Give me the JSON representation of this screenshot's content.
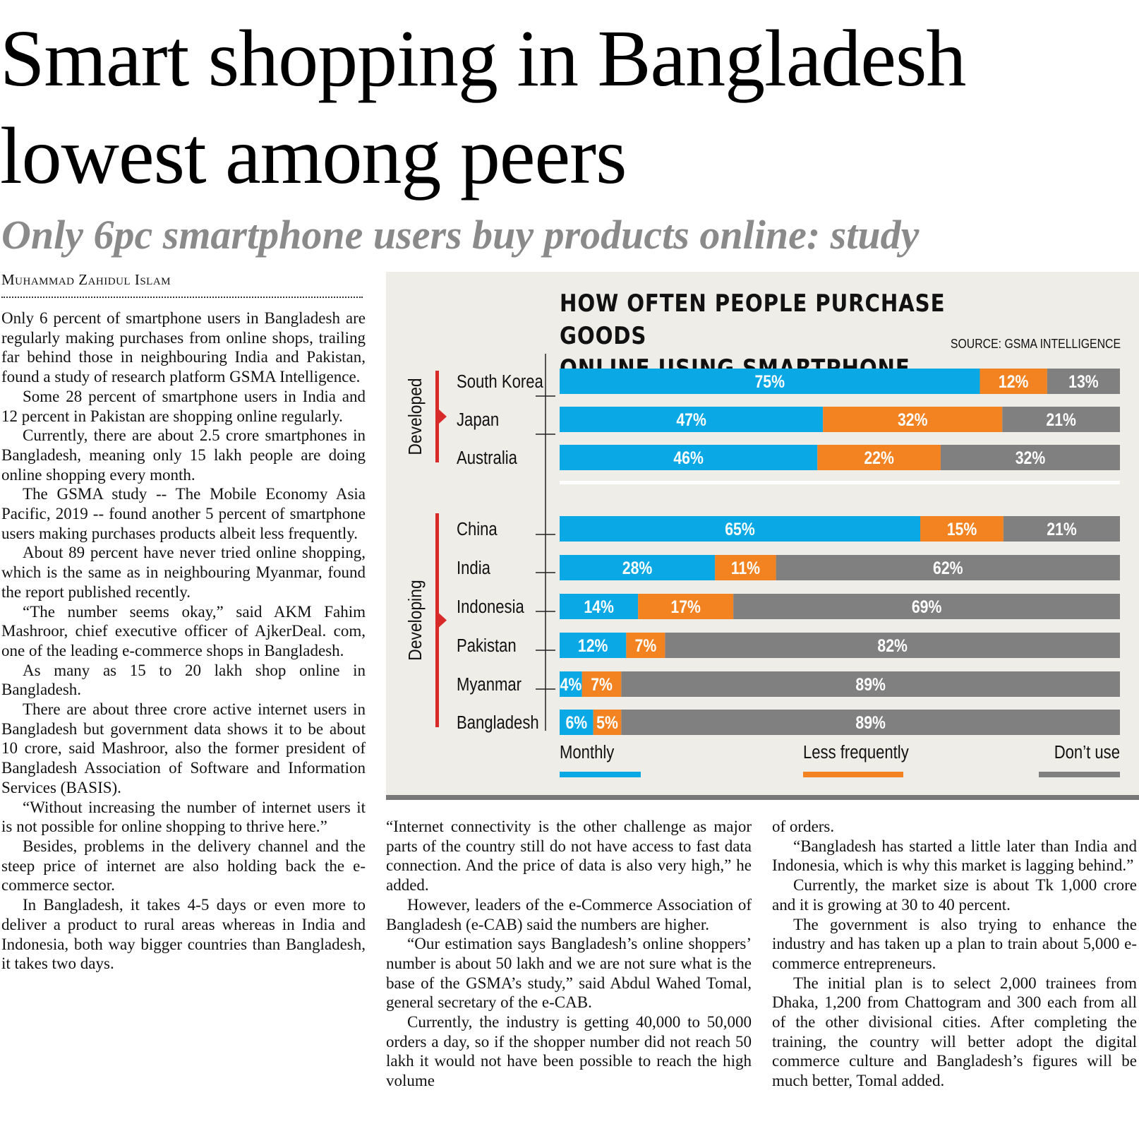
{
  "headline": "Smart shopping in Bangladesh lowest among peers",
  "subheadline": "Only 6pc smartphone users buy products online: study",
  "byline": "Muhammad Zahidul Islam",
  "columns": {
    "col1": [
      "Only 6 percent of smartphone users in Bangladesh are regularly making purchases from online shops, trailing far behind those in neighbouring India and Pakistan, found a study of research platform GSMA Intelligence.",
      "Some 28 percent of smartphone users in India and 12 percent in Pakistan are shopping online regularly.",
      "Currently, there are about 2.5 crore smartphones in Bangladesh, meaning only 15 lakh people are doing online shopping every month.",
      "The GSMA study -- The Mobile Economy Asia Pacific, 2019 -- found another 5 percent of smartphone users making purchases products albeit less frequently.",
      "About 89 percent have never tried online shopping, which is the same as in neighbouring Myanmar, found the report published recently.",
      "“The number seems okay,” said AKM Fahim Mashroor, chief executive officer of AjkerDeal. com, one of the leading e-commerce shops in Bangladesh.",
      "As many as 15 to 20 lakh shop online in Bangladesh.",
      "There are about three crore active internet users in Bangladesh but government data shows it to be about 10 crore, said Mashroor, also the former president of Bangladesh Association of Software and Information Services (BASIS).",
      "“Without increasing the number of internet users it is not possible for online shopping to thrive here.”",
      "Besides, problems in the delivery channel and the steep price of internet are also holding back the e-commerce sector.",
      "In Bangladesh, it takes 4-5 days or even more to deliver a product to rural areas whereas in India and Indonesia, both way bigger countries than Bangladesh, it takes two days."
    ],
    "col2": [
      "“Internet connectivity is the other challenge as major parts of the country still do not have access to fast data connection. And the price of data is also very high,” he added.",
      "However, leaders of the e-Commerce Association of Bangladesh (e-CAB) said the numbers are higher.",
      "“Our estimation says Bangladesh’s online shoppers’ number is about 50 lakh and we are not sure what is the base of the GSMA’s study,” said Abdul Wahed Tomal, general secretary of the e-CAB.",
      "Currently, the industry is getting 40,000 to 50,000 orders a day, so if the shopper number did not reach 50 lakh it would not have been possible to reach the high volume"
    ],
    "col3": [
      "of orders.",
      "“Bangladesh has started a little later than India and Indonesia, which is why this market is lagging behind.”",
      "Currently, the market size is about Tk 1,000 crore and it is growing at 30 to 40 percent.",
      "The government is also trying to enhance the industry and has taken up a plan to train about 5,000 e-commerce entrepreneurs.",
      "The initial plan is to select 2,000 trainees from Dhaka, 1,200 from Chattogram and 300 each from all of the other divisional cities. After completing the training, the country will better adopt the digital commerce culture and Bangladesh’s figures will be much better, Tomal added."
    ]
  },
  "chart_data": {
    "type": "bar",
    "stacked": true,
    "orientation": "horizontal",
    "title_line1": "HOW OFTEN PEOPLE PURCHASE GOODS",
    "title_line2": "ONLINE USING SMARTPHONE",
    "source": "SOURCE: GSMA INTELLIGENCE",
    "groups": [
      {
        "name": "Developed",
        "categories": [
          "South Korea",
          "Japan",
          "Australia"
        ]
      },
      {
        "name": "Developing",
        "categories": [
          "China",
          "India",
          "Indonesia",
          "Pakistan",
          "Myanmar",
          "Bangladesh"
        ]
      }
    ],
    "categories": [
      "South Korea",
      "Japan",
      "Australia",
      "China",
      "India",
      "Indonesia",
      "Pakistan",
      "Myanmar",
      "Bangladesh"
    ],
    "series": [
      {
        "name": "Monthly",
        "color": "#0aa9e6",
        "values": [
          75,
          47,
          46,
          65,
          28,
          14,
          12,
          4,
          6
        ]
      },
      {
        "name": "Less frequently",
        "color": "#f38221",
        "values": [
          12,
          32,
          22,
          15,
          11,
          17,
          7,
          7,
          5
        ]
      },
      {
        "name": "Don’t use",
        "color": "#808080",
        "values": [
          13,
          21,
          32,
          21,
          62,
          69,
          82,
          89,
          89
        ]
      }
    ],
    "legend_position": "bottom",
    "group_marker_color": "#d92a2a"
  }
}
